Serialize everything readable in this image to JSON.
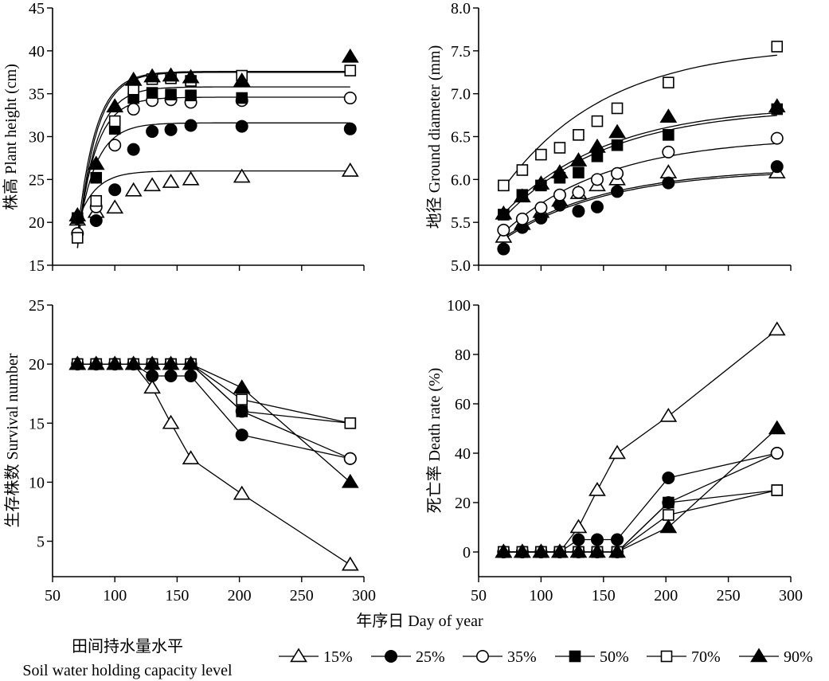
{
  "chart_data": [
    {
      "type": "scatter",
      "ylabel": "株高 Plant height (cm)",
      "xlim": [
        50,
        300
      ],
      "ylim": [
        15,
        45
      ],
      "yticks": [
        15,
        20,
        25,
        30,
        35,
        40,
        45
      ],
      "xticks": [],
      "fitted_curves": true,
      "series": [
        {
          "name": "15%",
          "x": [
            70,
            85,
            100,
            115,
            130,
            145,
            161,
            202,
            289
          ],
          "y": [
            20.3,
            21.2,
            21.7,
            23.7,
            24.3,
            24.7,
            25.0,
            25.3,
            26.0
          ],
          "fit": [
            20,
            26
          ]
        },
        {
          "name": "25%",
          "x": [
            70,
            85,
            100,
            115,
            130,
            145,
            161,
            202,
            289
          ],
          "y": [
            20.5,
            20.2,
            23.8,
            28.5,
            30.6,
            30.8,
            31.3,
            31.2,
            30.9
          ],
          "fit": [
            18,
            31.6
          ]
        },
        {
          "name": "35%",
          "x": [
            70,
            85,
            100,
            115,
            130,
            145,
            161,
            202,
            289
          ],
          "y": [
            18.7,
            21.8,
            29.0,
            33.2,
            34.2,
            34.3,
            34.0,
            34.2,
            34.5
          ],
          "fit": [
            17.5,
            34.6
          ]
        },
        {
          "name": "50%",
          "x": [
            70,
            85,
            100,
            115,
            130,
            145,
            161,
            202,
            289
          ],
          "y": [
            20.5,
            25.2,
            30.9,
            34.5,
            35.1,
            34.9,
            34.8,
            34.5,
            null
          ],
          "fit": [
            17,
            35.8
          ]
        },
        {
          "name": "70%",
          "x": [
            70,
            85,
            100,
            115,
            130,
            145,
            161,
            202,
            289
          ],
          "y": [
            18.2,
            22.5,
            31.8,
            35.5,
            36.7,
            36.8,
            36.5,
            37.1,
            37.7
          ],
          "fit": [
            17,
            37.5
          ]
        },
        {
          "name": "90%",
          "x": [
            70,
            85,
            100,
            115,
            130,
            145,
            161,
            202,
            289
          ],
          "y": [
            20.8,
            26.8,
            33.5,
            36.6,
            37.0,
            37.1,
            36.9,
            36.5,
            39.3
          ],
          "fit": [
            18.5,
            37.6
          ]
        }
      ]
    },
    {
      "type": "scatter",
      "ylabel": "地径 Ground diameter (mm)",
      "xlim": [
        50,
        300
      ],
      "ylim": [
        5.0,
        8.0
      ],
      "yticks": [
        5.0,
        5.5,
        6.0,
        6.5,
        7.0,
        7.5,
        8.0
      ],
      "xticks": [],
      "fitted_curves": true,
      "series": [
        {
          "name": "15%",
          "x": [
            70,
            85,
            100,
            115,
            130,
            145,
            161,
            202,
            289
          ],
          "y": [
            5.33,
            5.48,
            5.62,
            5.75,
            5.84,
            5.93,
            6.0,
            6.08,
            6.08
          ],
          "fit": [
            5.3,
            6.12
          ]
        },
        {
          "name": "25%",
          "x": [
            70,
            85,
            100,
            115,
            130,
            145,
            161,
            202,
            289
          ],
          "y": [
            5.19,
            5.44,
            5.55,
            5.7,
            5.63,
            5.68,
            5.86,
            5.96,
            6.15
          ],
          "fit": [
            5.32,
            6.14
          ]
        },
        {
          "name": "35%",
          "x": [
            70,
            85,
            100,
            115,
            130,
            145,
            161,
            202,
            289
          ],
          "y": [
            5.41,
            5.54,
            5.67,
            5.82,
            5.85,
            6.0,
            6.07,
            6.32,
            6.48
          ],
          "fit": [
            5.38,
            6.5
          ]
        },
        {
          "name": "50%",
          "x": [
            70,
            85,
            100,
            115,
            130,
            145,
            161,
            202,
            289
          ],
          "y": [
            5.59,
            5.82,
            5.93,
            6.02,
            6.08,
            6.27,
            6.4,
            6.52,
            6.82
          ],
          "fit": [
            5.55,
            6.84
          ]
        },
        {
          "name": "70%",
          "x": [
            70,
            85,
            100,
            115,
            130,
            145,
            161,
            202,
            289
          ],
          "y": [
            5.93,
            6.11,
            6.29,
            6.37,
            6.52,
            6.68,
            6.83,
            7.13,
            7.55
          ],
          "fit": [
            5.9,
            7.57
          ]
        },
        {
          "name": "90%",
          "x": [
            70,
            85,
            100,
            115,
            130,
            145,
            161,
            202,
            289
          ],
          "y": [
            5.6,
            5.8,
            5.95,
            6.08,
            6.22,
            6.38,
            6.55,
            6.73,
            6.85
          ],
          "fit": [
            5.6,
            6.87
          ]
        }
      ]
    },
    {
      "type": "line",
      "ylabel": "生存株数 Survival number",
      "xlim": [
        50,
        300
      ],
      "ylim": [
        2,
        25
      ],
      "yticks": [
        5,
        10,
        15,
        20,
        25
      ],
      "xticks": [
        50,
        100,
        150,
        200,
        250,
        300
      ],
      "series": [
        {
          "name": "15%",
          "x": [
            70,
            85,
            100,
            115,
            130,
            145,
            161,
            202,
            289
          ],
          "y": [
            20,
            20,
            20,
            20,
            18,
            15,
            12,
            9,
            3
          ]
        },
        {
          "name": "25%",
          "x": [
            70,
            85,
            100,
            115,
            130,
            145,
            161,
            202,
            289
          ],
          "y": [
            20,
            20,
            20,
            20,
            19,
            19,
            19,
            14,
            12
          ]
        },
        {
          "name": "35%",
          "x": [
            70,
            85,
            100,
            115,
            130,
            145,
            161,
            202,
            289
          ],
          "y": [
            20,
            20,
            20,
            20,
            20,
            20,
            20,
            16,
            12
          ]
        },
        {
          "name": "50%",
          "x": [
            70,
            85,
            100,
            115,
            130,
            145,
            161,
            202,
            289
          ],
          "y": [
            20,
            20,
            20,
            20,
            20,
            20,
            20,
            16,
            15
          ]
        },
        {
          "name": "70%",
          "x": [
            70,
            85,
            100,
            115,
            130,
            145,
            161,
            202,
            289
          ],
          "y": [
            20,
            20,
            20,
            20,
            20,
            20,
            20,
            17,
            15
          ]
        },
        {
          "name": "90%",
          "x": [
            70,
            85,
            100,
            115,
            130,
            145,
            161,
            202,
            289
          ],
          "y": [
            20,
            20,
            20,
            20,
            20,
            20,
            20,
            18,
            10
          ]
        }
      ]
    },
    {
      "type": "line",
      "ylabel": "死亡率 Death rate (%)",
      "xlim": [
        50,
        300
      ],
      "ylim": [
        -10,
        100
      ],
      "yticks": [
        0,
        20,
        40,
        60,
        80,
        100
      ],
      "xticks": [
        50,
        100,
        150,
        200,
        250,
        300
      ],
      "series": [
        {
          "name": "15%",
          "x": [
            70,
            85,
            100,
            115,
            130,
            145,
            161,
            202,
            289
          ],
          "y": [
            0,
            0,
            0,
            0,
            10,
            25,
            40,
            55,
            90
          ]
        },
        {
          "name": "25%",
          "x": [
            70,
            85,
            100,
            115,
            130,
            145,
            161,
            202,
            289
          ],
          "y": [
            0,
            0,
            0,
            0,
            5,
            5,
            5,
            30,
            40
          ]
        },
        {
          "name": "35%",
          "x": [
            70,
            85,
            100,
            115,
            130,
            145,
            161,
            202,
            289
          ],
          "y": [
            0,
            0,
            0,
            0,
            0,
            0,
            0,
            20,
            40
          ]
        },
        {
          "name": "50%",
          "x": [
            70,
            85,
            100,
            115,
            130,
            145,
            161,
            202,
            289
          ],
          "y": [
            0,
            0,
            0,
            0,
            0,
            0,
            0,
            20,
            25
          ]
        },
        {
          "name": "70%",
          "x": [
            70,
            85,
            100,
            115,
            130,
            145,
            161,
            202,
            289
          ],
          "y": [
            0,
            0,
            0,
            0,
            0,
            0,
            0,
            15,
            25
          ]
        },
        {
          "name": "90%",
          "x": [
            70,
            85,
            100,
            115,
            130,
            145,
            161,
            202,
            289
          ],
          "y": [
            0,
            0,
            0,
            0,
            0,
            0,
            0,
            10,
            50
          ]
        }
      ]
    }
  ],
  "xlabel": "年序日 Day of year",
  "legend": {
    "title_cn": "田间持水量水平",
    "title_en": "Soil water holding capacity level",
    "entries": [
      {
        "label": "15%",
        "marker": "triangle-open"
      },
      {
        "label": "25%",
        "marker": "circle-filled"
      },
      {
        "label": "35%",
        "marker": "circle-open"
      },
      {
        "label": "50%",
        "marker": "square-filled"
      },
      {
        "label": "70%",
        "marker": "square-open"
      },
      {
        "label": "90%",
        "marker": "triangle-filled"
      }
    ]
  }
}
